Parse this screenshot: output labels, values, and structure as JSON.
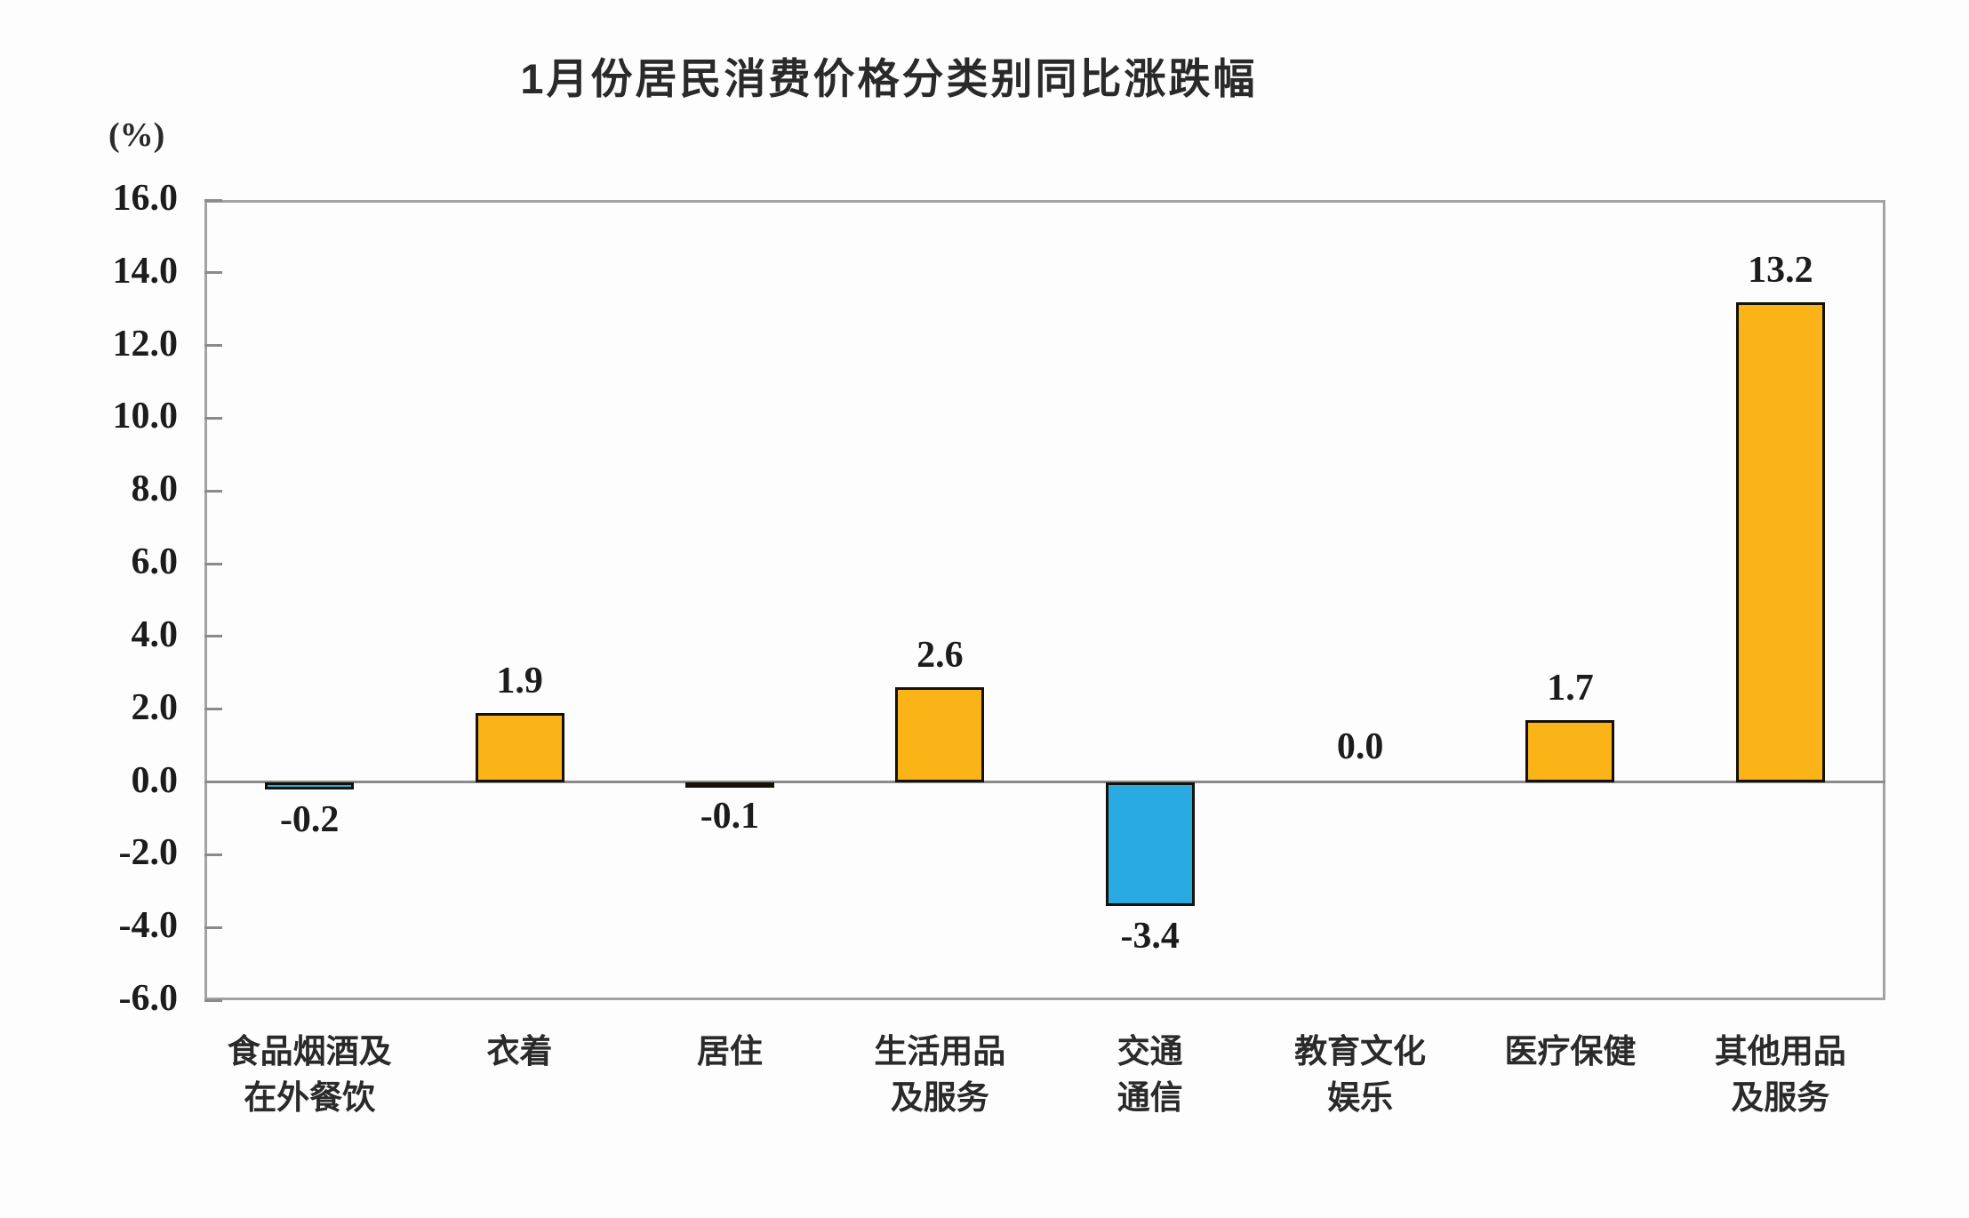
{
  "title": "1月份居民消费价格分类别同比涨跌幅",
  "y_axis_unit": "(%)",
  "chart_data": {
    "type": "bar",
    "title": "1月份居民消费价格分类别同比涨跌幅",
    "xlabel": "",
    "ylabel": "(%)",
    "categories": [
      "食品烟酒及\n在外餐饮",
      "衣着",
      "居住",
      "生活用品\n及服务",
      "交通\n通信",
      "教育文化\n娱乐",
      "医疗保健",
      "其他用品\n及服务"
    ],
    "values": [
      -0.2,
      1.9,
      -0.1,
      2.6,
      -3.4,
      0.0,
      1.7,
      13.2
    ],
    "value_labels": [
      "-0.2",
      "1.9",
      "-0.1",
      "2.6",
      "-3.4",
      "0.0",
      "1.7",
      "13.2"
    ],
    "ylim": [
      -6.0,
      16.0
    ],
    "ytick_step": 2.0,
    "ytick_labels": [
      "16.0",
      "14.0",
      "12.0",
      "10.0",
      "8.0",
      "6.0",
      "4.0",
      "2.0",
      "0.0",
      "-2.0",
      "-4.0",
      "-6.0"
    ],
    "grid": false,
    "legend": false,
    "colors": {
      "positive_bar": "#FAB417",
      "negative_bar": "#29AAE2",
      "bar_border": "#151008",
      "axis_line": "#a3a3a3",
      "tick_line": "#8a8a8a",
      "text": "#1c1c1c"
    }
  }
}
